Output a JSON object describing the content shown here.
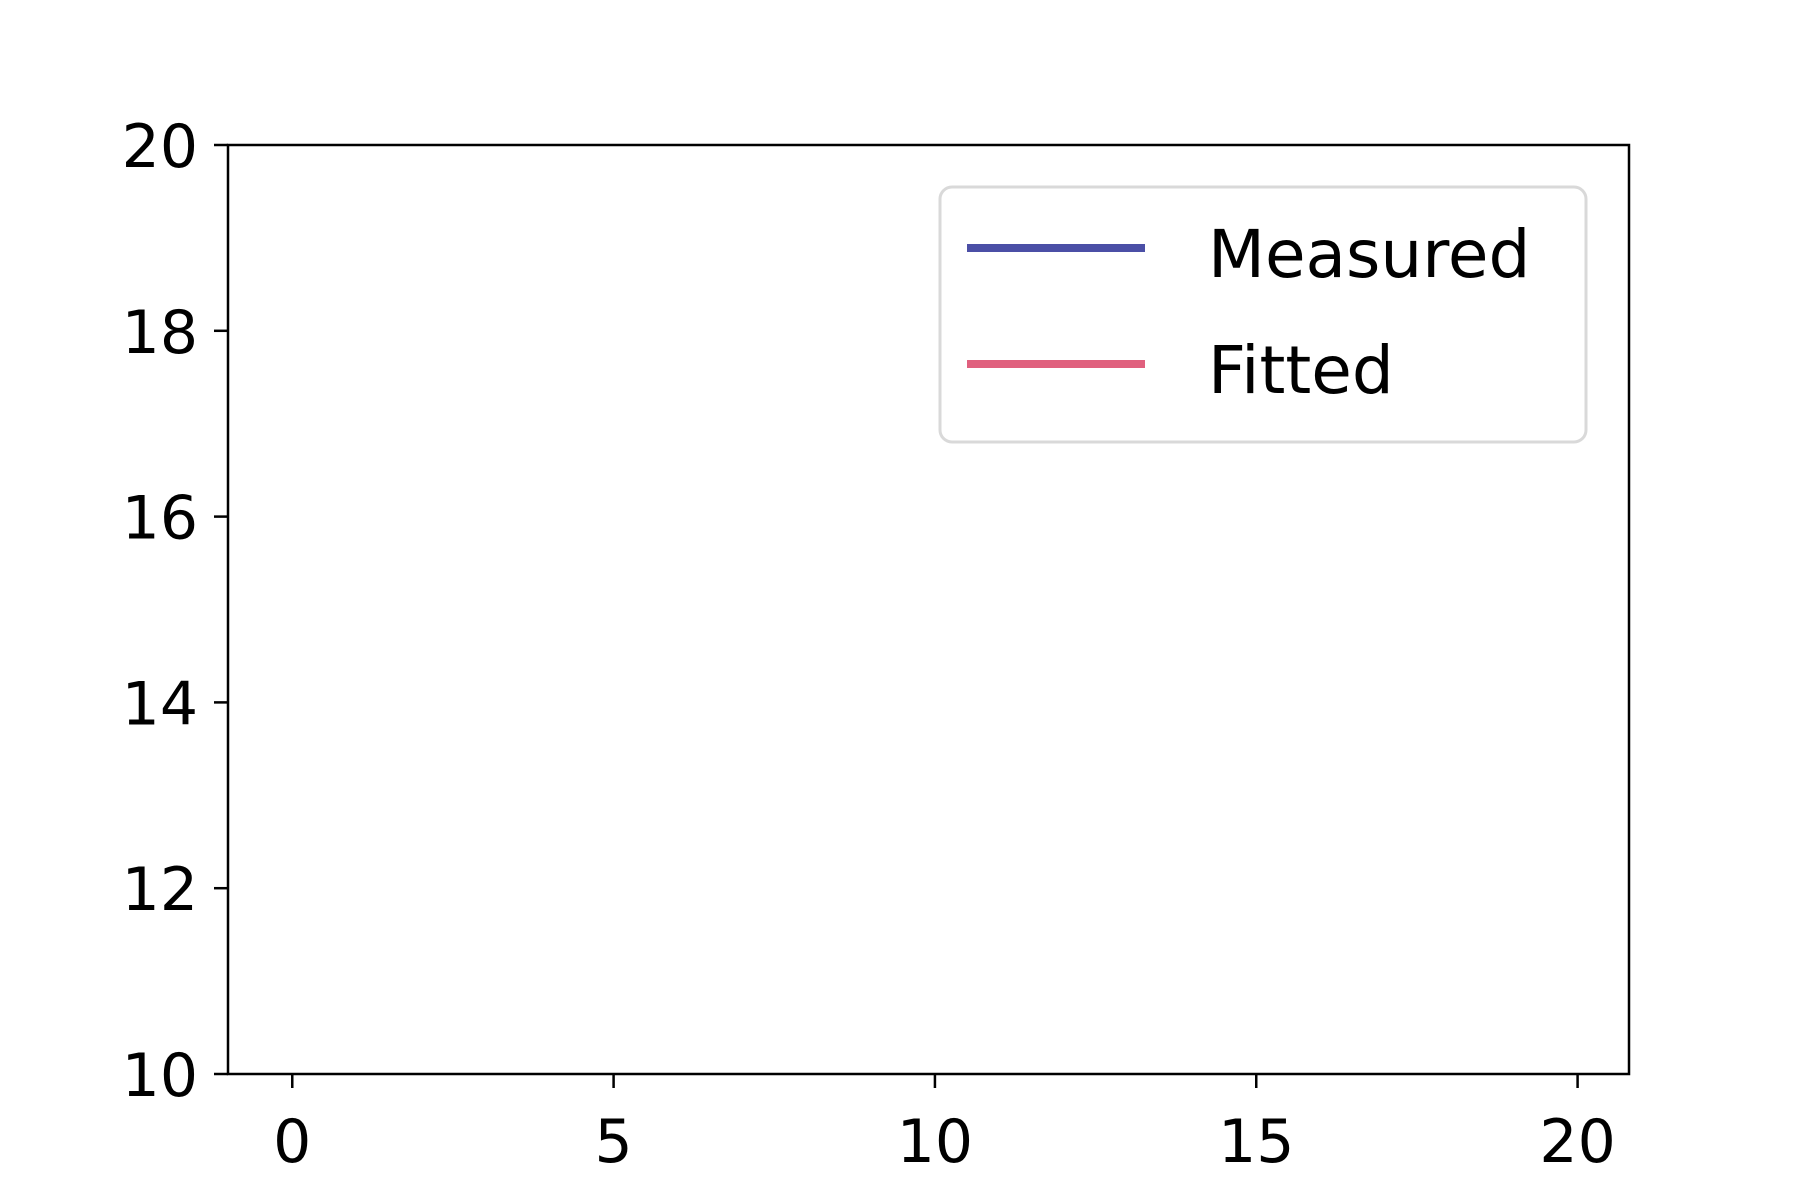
{
  "chart_data": {
    "type": "line",
    "title": "",
    "xlabel": "",
    "ylabel": "",
    "xlim": [
      -1,
      20.8
    ],
    "ylim": [
      10,
      20
    ],
    "x_ticks": [
      0,
      5,
      10,
      15,
      20
    ],
    "y_ticks": [
      10,
      12,
      14,
      16,
      18,
      20
    ],
    "x_tick_labels": [
      "0",
      "5",
      "10",
      "15",
      "20"
    ],
    "y_tick_labels": [
      "10",
      "12",
      "14",
      "16",
      "18",
      "20"
    ],
    "grid": false,
    "legend_position": "top-right",
    "series": [
      {
        "name": "Measured",
        "color": "#4b4fa6",
        "x": [],
        "y": []
      },
      {
        "name": "Fitted",
        "color": "#e0607e",
        "x": [],
        "y": []
      }
    ]
  }
}
